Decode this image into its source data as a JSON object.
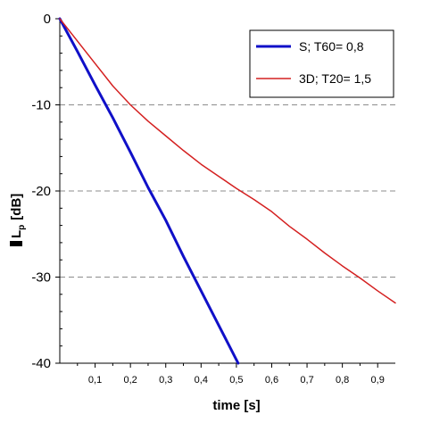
{
  "chart_data": {
    "type": "line",
    "xlabel": "time [s]",
    "ylabel_prefix": "L",
    "ylabel_sub": "p",
    "ylabel_suffix": "[dB]",
    "xlim": [
      0,
      0.95
    ],
    "ylim": [
      -40,
      0
    ],
    "x_ticks": [
      0.1,
      0.2,
      0.3,
      0.4,
      0.5,
      0.6,
      0.7,
      0.8,
      0.9
    ],
    "x_tick_labels": [
      "0,1",
      "0,2",
      "0,3",
      "0,4",
      "0,5",
      "0,6",
      "0,7",
      "0,8",
      "0,9"
    ],
    "y_ticks": [
      0,
      -10,
      -20,
      -30,
      -40
    ],
    "y_tick_labels": [
      "0",
      "-10",
      "-20",
      "-30",
      "-40"
    ],
    "grid": "dashed horizontal at -10, -20, -30",
    "legend_position": "top-right",
    "series": [
      {
        "name": "S;  T60= 0,8",
        "color": "#1010c8",
        "points": [
          [
            0.0,
            0.0
          ],
          [
            0.05,
            -3.8
          ],
          [
            0.1,
            -7.7
          ],
          [
            0.15,
            -11.5
          ],
          [
            0.2,
            -15.5
          ],
          [
            0.25,
            -19.6
          ],
          [
            0.3,
            -23.4
          ],
          [
            0.35,
            -27.6
          ],
          [
            0.4,
            -31.6
          ],
          [
            0.45,
            -35.6
          ],
          [
            0.5,
            -39.6
          ],
          [
            0.505,
            -40.0
          ]
        ]
      },
      {
        "name": "3D; T20= 1,5",
        "color": "#d42020",
        "points": [
          [
            0.0,
            0.0
          ],
          [
            0.05,
            -2.6
          ],
          [
            0.1,
            -5.2
          ],
          [
            0.15,
            -7.8
          ],
          [
            0.2,
            -10.0
          ],
          [
            0.25,
            -11.9
          ],
          [
            0.3,
            -13.6
          ],
          [
            0.35,
            -15.3
          ],
          [
            0.4,
            -16.9
          ],
          [
            0.45,
            -18.3
          ],
          [
            0.5,
            -19.7
          ],
          [
            0.55,
            -21.0
          ],
          [
            0.6,
            -22.4
          ],
          [
            0.65,
            -24.1
          ],
          [
            0.7,
            -25.6
          ],
          [
            0.75,
            -27.2
          ],
          [
            0.8,
            -28.7
          ],
          [
            0.85,
            -30.1
          ],
          [
            0.9,
            -31.6
          ],
          [
            0.95,
            -33.0
          ]
        ]
      }
    ]
  }
}
